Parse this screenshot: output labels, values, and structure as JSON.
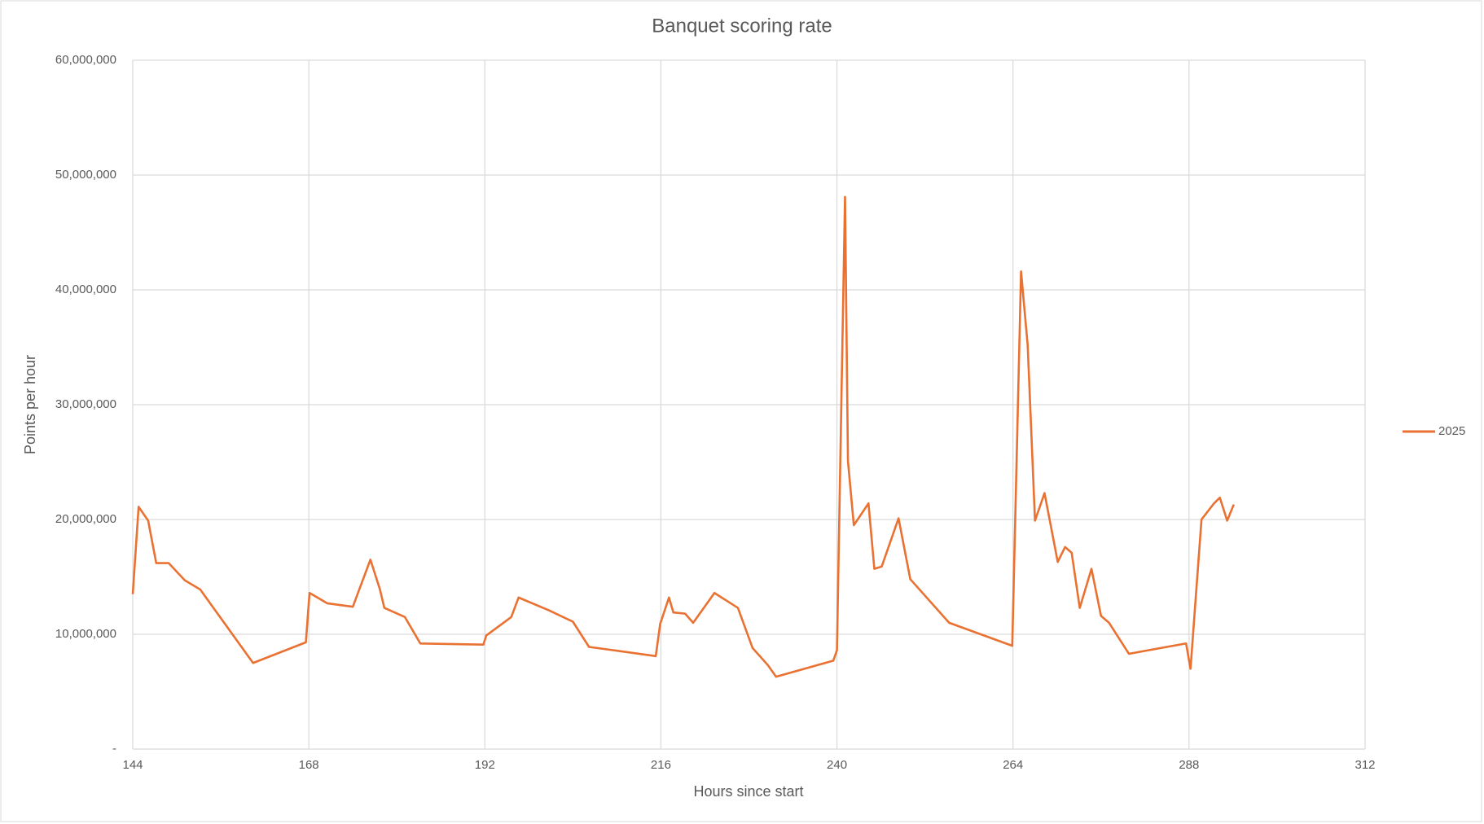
{
  "chart_data": {
    "type": "line",
    "title": "Banquet scoring rate",
    "x_label": "Hours since start",
    "y_label": "Points per hour",
    "x": [
      144,
      144.8,
      146.1,
      147.2,
      148.9,
      151.1,
      153.2,
      160.4,
      167.6,
      168.1,
      170.5,
      174.0,
      176.4,
      177.7,
      178.3,
      181.1,
      183.2,
      191.8,
      192.2,
      195.6,
      196.6,
      200.7,
      204.0,
      206.2,
      215.3,
      215.9,
      217.1,
      217.7,
      219.3,
      220.4,
      223.3,
      226.5,
      228.5,
      230.6,
      231.7,
      239.5,
      240.0,
      241.1,
      241.5,
      242.3,
      244.3,
      245.1,
      246.1,
      248.4,
      250.0,
      255.3,
      263.9,
      265.1,
      266.0,
      267.0,
      268.3,
      270.1,
      271.1,
      272.0,
      273.1,
      274.7,
      276.0,
      277.1,
      279.8,
      287.6,
      288.2,
      289.7,
      291.4,
      292.2,
      293.2,
      294.1
    ],
    "series": [
      {
        "name": "2025",
        "color": "#e97132",
        "values": [
          13500000,
          21100000,
          19900000,
          16200000,
          16200000,
          14700000,
          13900000,
          7500000,
          9300000,
          13600000,
          12700000,
          12400000,
          16500000,
          13900000,
          12300000,
          11500000,
          9200000,
          9100000,
          9900000,
          11500000,
          13200000,
          12100000,
          11100000,
          8900000,
          8100000,
          10900000,
          13200000,
          11900000,
          11800000,
          11000000,
          13600000,
          12300000,
          8800000,
          7300000,
          6300000,
          7700000,
          8600000,
          48100000,
          25100000,
          19500000,
          21400000,
          15700000,
          15900000,
          20100000,
          14800000,
          11000000,
          9000000,
          41600000,
          35200000,
          19900000,
          22300000,
          16300000,
          17600000,
          17100000,
          12300000,
          15700000,
          11600000,
          11000000,
          8300000,
          9200000,
          7000000,
          20000000,
          21400000,
          21900000,
          19900000,
          21300000
        ]
      }
    ],
    "xlim": [
      144,
      312
    ],
    "xticks": [
      144,
      168,
      192,
      216,
      240,
      264,
      288,
      312
    ],
    "ylim": [
      0,
      60000000
    ],
    "yticks": [
      {
        "value": 0,
        "label": "-"
      },
      {
        "value": 10000000,
        "label": "10,000,000"
      },
      {
        "value": 20000000,
        "label": "20,000,000"
      },
      {
        "value": 30000000,
        "label": "30,000,000"
      },
      {
        "value": 40000000,
        "label": "40,000,000"
      },
      {
        "value": 50000000,
        "label": "50,000,000"
      },
      {
        "value": 60000000,
        "label": "60,000,000"
      }
    ],
    "grid": true,
    "legend": "right"
  }
}
